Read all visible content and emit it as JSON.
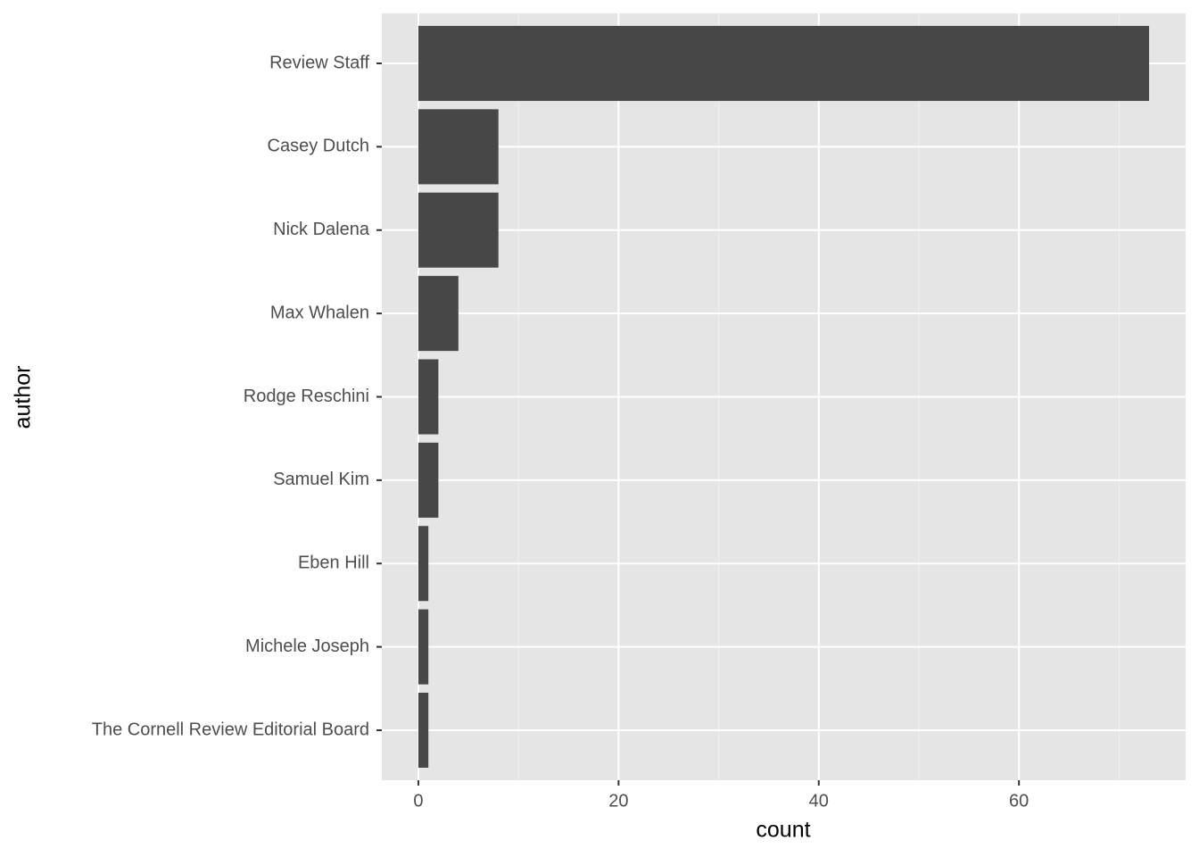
{
  "chart_data": {
    "type": "bar",
    "orientation": "horizontal",
    "x_label": "count",
    "y_label": "author",
    "categories": [
      "Review Staff",
      "Casey Dutch",
      "Nick Dalena",
      "Max Whalen",
      "Rodge Reschini",
      "Samuel Kim",
      "Eben Hill",
      "Michele Joseph",
      "The Cornell Review Editorial Board"
    ],
    "values": [
      73,
      8,
      8,
      4,
      2,
      2,
      1,
      1,
      1
    ],
    "color": "#474747",
    "xlim": [
      -3.65,
      76.65
    ],
    "xticks": [
      0,
      20,
      40,
      60
    ],
    "grid": true
  }
}
